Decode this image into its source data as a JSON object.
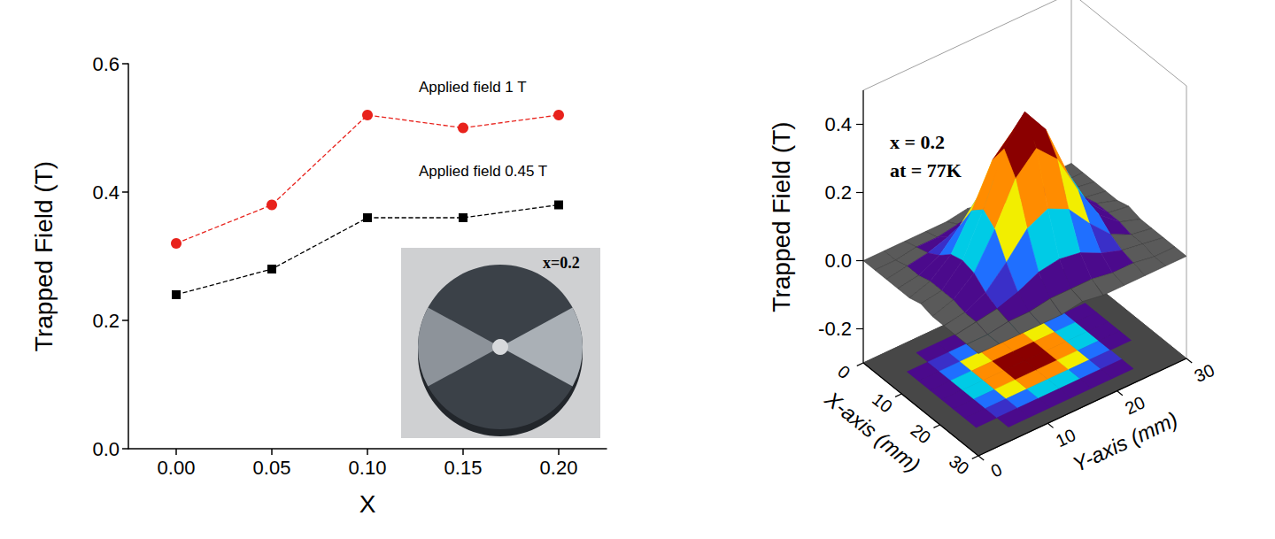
{
  "chart_data": [
    {
      "type": "line",
      "xlabel": "X",
      "ylabel": "Trapped Field (T)",
      "x": [
        0,
        0.05,
        0.1,
        0.15,
        0.2
      ],
      "series": [
        {
          "name": "Applied field 1 T",
          "color": "#e8221c",
          "marker": "circle",
          "line_style": "dashed",
          "values": [
            0.32,
            0.38,
            0.52,
            0.5,
            0.52
          ]
        },
        {
          "name": "Applied field 0.45 T",
          "color": "#000000",
          "marker": "square",
          "line_style": "dashed",
          "values": [
            0.24,
            0.28,
            0.36,
            0.36,
            0.38
          ]
        }
      ],
      "xlim": [
        -0.025,
        0.225
      ],
      "xticks": [
        {
          "value": 0,
          "label": "0.00"
        },
        0.05,
        {
          "value": 0.1,
          "label": "0.10"
        },
        0.15,
        {
          "value": 0.2,
          "label": "0.20"
        }
      ],
      "ylim": [
        0,
        0.6
      ],
      "yticks": [
        {
          "value": 0,
          "label": "0.0"
        },
        0.2,
        0.4,
        0.6
      ],
      "grid": false,
      "annotations": [
        "x=0.2"
      ]
    },
    {
      "type": "surface",
      "xlabel": "X-axis (mm)",
      "ylabel": "Y-axis (mm)",
      "zlabel": "Trapped Field (T)",
      "annotations": [
        "x = 0.2",
        "at = 77K"
      ],
      "x": [
        0,
        3,
        6,
        9,
        12,
        15,
        18,
        21,
        24,
        27,
        30
      ],
      "y": [
        0,
        3,
        6,
        9,
        12,
        15,
        18,
        21,
        24,
        27,
        30
      ],
      "z": [
        [
          0,
          0,
          0,
          0,
          0,
          0.01,
          0,
          0,
          0,
          0,
          0
        ],
        [
          0,
          0,
          0.01,
          0.01,
          0.02,
          0.02,
          0.02,
          0.01,
          0.01,
          0,
          0
        ],
        [
          0,
          0.01,
          0.02,
          0.04,
          0.07,
          0.08,
          0.07,
          0.04,
          0.02,
          0.01,
          0
        ],
        [
          0,
          0.01,
          0.04,
          0.1,
          0.17,
          0.2,
          0.17,
          0.1,
          0.04,
          0.01,
          0
        ],
        [
          0,
          0.02,
          0.07,
          0.17,
          0.29,
          0.35,
          0.29,
          0.17,
          0.07,
          0.02,
          0
        ],
        [
          0.01,
          0.02,
          0.08,
          0.2,
          0.35,
          0.43,
          0.35,
          0.2,
          0.08,
          0.02,
          0.01
        ],
        [
          0,
          0.02,
          0.07,
          0.17,
          0.29,
          0.35,
          0.29,
          0.17,
          0.07,
          0.02,
          0
        ],
        [
          0,
          0.01,
          0.04,
          0.1,
          0.17,
          0.2,
          0.17,
          0.1,
          0.04,
          0.01,
          0
        ],
        [
          0,
          0.01,
          0.02,
          0.04,
          0.07,
          0.08,
          0.07,
          0.04,
          0.02,
          0.01,
          0
        ],
        [
          0,
          0,
          0.01,
          0.01,
          0.02,
          0.02,
          0.02,
          0.01,
          0.01,
          0,
          0
        ],
        [
          0,
          0,
          0,
          0,
          0,
          0.01,
          0,
          0,
          0,
          0,
          0
        ]
      ],
      "levels": [
        0.02,
        0.05,
        0.08,
        0.11,
        0.14,
        0.17,
        0.21,
        0.26,
        0.31
      ],
      "colors": [
        "#5a5a5a",
        "#4b0a8c",
        "#3a2fc8",
        "#1f6fff",
        "#00cbe6",
        "#00c84a",
        "#f2ee00",
        "#ff8c00",
        "#e01010",
        "#8b0000"
      ],
      "xlim": [
        0,
        30
      ],
      "xticks": [
        0,
        10,
        20,
        30
      ],
      "ylim": [
        0,
        30
      ],
      "yticks": [
        0,
        10,
        20,
        30
      ],
      "zlim": [
        -0.3,
        0.5
      ],
      "zticks": [
        -0.2,
        {
          "value": 0,
          "label": "0.0"
        },
        0.2,
        0.4
      ],
      "grid": false
    }
  ]
}
